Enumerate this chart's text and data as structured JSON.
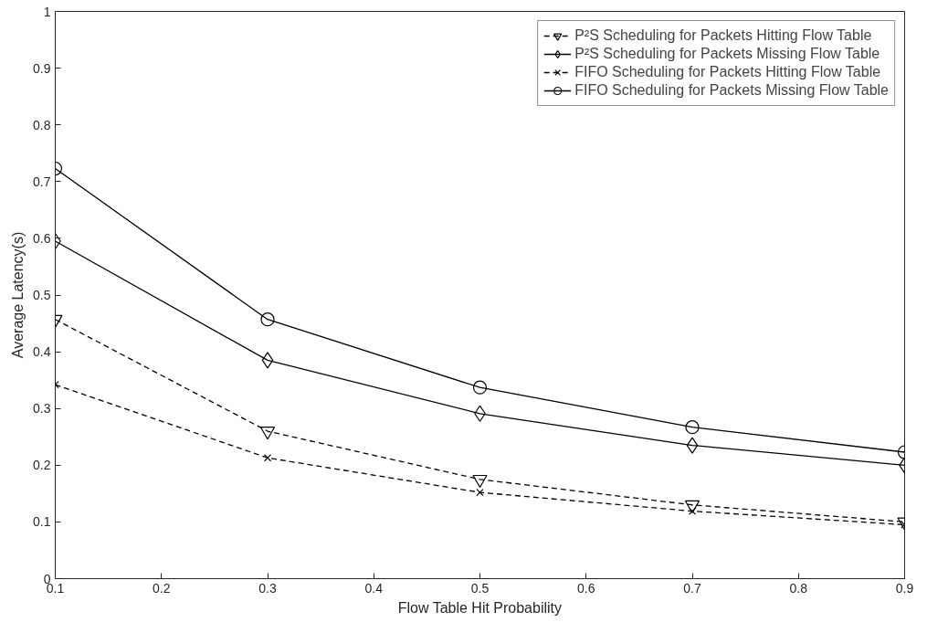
{
  "chart_data": {
    "type": "line",
    "xlabel": "Flow Table Hit Probability",
    "ylabel": "Average Latency(s)",
    "x": [
      0.1,
      0.3,
      0.5,
      0.7,
      0.9
    ],
    "xlim": [
      0.1,
      0.9
    ],
    "xticks": [
      0.1,
      0.2,
      0.3,
      0.4,
      0.5,
      0.6,
      0.7,
      0.8,
      0.9
    ],
    "ylim": [
      0,
      1
    ],
    "yticks": [
      0,
      0.1,
      0.2,
      0.3,
      0.4,
      0.5,
      0.6,
      0.7,
      0.8,
      0.9,
      1
    ],
    "grid": false,
    "legend": "top right",
    "series": [
      {
        "name": "P²S Scheduling for Packets Hitting Flow Table",
        "color": "#000000",
        "marker": "triangle",
        "line_style": "dashed",
        "values": [
          0.457,
          0.26,
          0.175,
          0.13,
          0.1
        ]
      },
      {
        "name": "P²S Scheduling for Packets Missing Flow Table",
        "color": "#000000",
        "marker": "diamond",
        "line_style": "solid",
        "values": [
          0.595,
          0.385,
          0.291,
          0.235,
          0.2
        ]
      },
      {
        "name": "FIFO Scheduling for Packets Hitting Flow Table",
        "color": "#000000",
        "marker": "cross",
        "line_style": "dashed",
        "values": [
          0.342,
          0.213,
          0.152,
          0.119,
          0.095
        ]
      },
      {
        "name": "FIFO Scheduling for Packets Missing Flow Table",
        "color": "#000000",
        "marker": "circle",
        "line_style": "solid",
        "values": [
          0.723,
          0.457,
          0.337,
          0.267,
          0.223
        ]
      }
    ]
  }
}
